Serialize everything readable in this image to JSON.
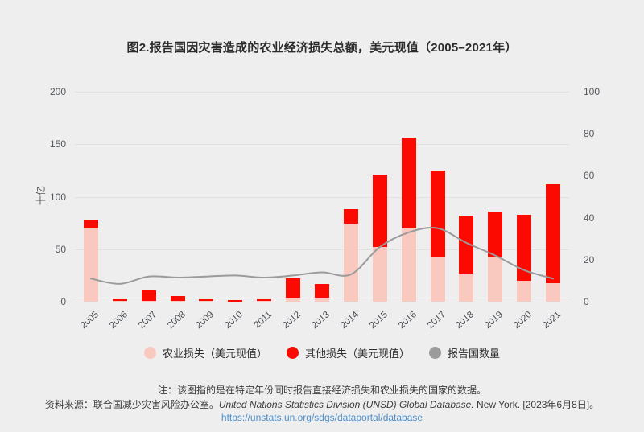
{
  "title": "图2.报告国因灾害造成的农业经济损失总额，美元现值（2005–2021年）",
  "colors": {
    "background": "#eeeeee",
    "agriculture_bar": "#f9c9c0",
    "other_bar": "#fa0a00",
    "countries_line": "#9b9b9b",
    "grid": "#e2e2e2",
    "baseline": "#d2d2d2",
    "axis_text": "#55585d",
    "title_text": "#2b2b2b",
    "link": "#4f8fc8"
  },
  "chart_data": {
    "type": "bar",
    "subtype": "stacked-bars-with-line",
    "title": "图2.报告国因灾害造成的农业经济损失总额，美元现值（2005–2021年）",
    "categories": [
      "2005",
      "2006",
      "2007",
      "2008",
      "2009",
      "2010",
      "2011",
      "2012",
      "2013",
      "2014",
      "2015",
      "2016",
      "2017",
      "2018",
      "2019",
      "2020",
      "2021"
    ],
    "series": [
      {
        "name": "农业损失（美元现值）",
        "type": "bar",
        "stack": "losses",
        "axis": "left",
        "color": "#f9c9c0",
        "values": [
          70,
          0.4,
          0.5,
          0.4,
          0.4,
          0.3,
          0.4,
          4,
          4,
          74,
          52,
          70,
          42,
          27,
          42,
          20,
          18
        ]
      },
      {
        "name": "其他损失（美元现值）",
        "type": "bar",
        "stack": "losses",
        "axis": "left",
        "color": "#fa0a00",
        "values": [
          8,
          1.6,
          10.5,
          5.1,
          1.9,
          1.2,
          1.6,
          18,
          13,
          14,
          69,
          86,
          83,
          55,
          44,
          63,
          94
        ]
      },
      {
        "name": "报告国数量",
        "type": "line",
        "axis": "right",
        "color": "#9b9b9b",
        "values": [
          11,
          8.5,
          12,
          11.5,
          12,
          12.5,
          11.5,
          12.5,
          14,
          13,
          26,
          33,
          35,
          28,
          22,
          15,
          11
        ]
      }
    ],
    "left_axis": {
      "label": "十亿",
      "min": 0,
      "max": 200,
      "ticks": [
        0,
        50,
        100,
        150,
        200
      ]
    },
    "right_axis": {
      "label": "",
      "min": 0,
      "max": 100,
      "ticks": [
        0,
        20,
        40,
        60,
        80,
        100
      ]
    },
    "grid": "horizontal",
    "legend_position": "bottom"
  },
  "footer": {
    "note": "注：该图指的是在特定年份同时报告直接经济损失和农业损失的国家的数据。",
    "source_prefix": "资料来源：联合国减少灾害风险办公室。",
    "source_italic": "United Nations Statistics Division (UNSD) Global Database.",
    "source_suffix": " New York. [2023年6月8日]。",
    "link": "https://unstats.un.org/sdgs/dataportal/database"
  }
}
